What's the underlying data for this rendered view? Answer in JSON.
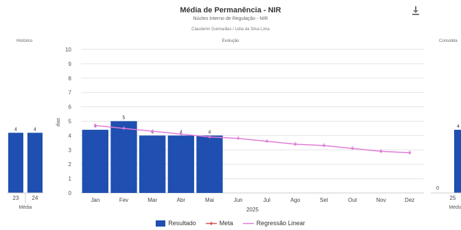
{
  "header": {
    "title": "Média de Permanência - NIR",
    "subtitle": "Núcleo Interno de Regulação - NIR",
    "authors": "Claudemir Guimarães / Lidia da Silva Lima",
    "download_icon": "download-icon"
  },
  "panels": {
    "left_title": "Histórico",
    "center_title": "Evolução",
    "right_title": "Consolida"
  },
  "colors": {
    "bar": "#1f4fb0",
    "meta": "#d9534f",
    "regression": "#e07ad6"
  },
  "chart_data": [
    {
      "type": "bar",
      "panel": "history",
      "categories": [
        "23",
        "24"
      ],
      "values": [
        4,
        4
      ],
      "data_labels": [
        "4",
        "4"
      ],
      "xlabel": "Média"
    },
    {
      "type": "bar",
      "panel": "evolution",
      "categories": [
        "Jan",
        "Fev",
        "Mar",
        "Abr",
        "Mai",
        "Jun",
        "Jul",
        "Ago",
        "Set",
        "Out",
        "Nov",
        "Dez"
      ],
      "series": [
        {
          "name": "Resultado",
          "type": "bar",
          "values": [
            4.4,
            5.0,
            4.0,
            4.0,
            4.0,
            null,
            null,
            null,
            null,
            null,
            null,
            null
          ],
          "labels": [
            "4",
            "5",
            "4",
            "4",
            "4",
            "",
            "",
            "",
            "",
            "",
            "",
            ""
          ]
        },
        {
          "name": "Meta",
          "type": "line",
          "values": [
            null,
            null,
            null,
            null,
            null,
            null,
            null,
            null,
            null,
            null,
            null,
            null
          ]
        },
        {
          "name": "Regressão Linear",
          "type": "line",
          "values": [
            4.7,
            4.5,
            4.3,
            4.1,
            3.9,
            3.8,
            3.6,
            3.4,
            3.3,
            3.1,
            2.9,
            2.8
          ],
          "labels": [
            "5",
            "4",
            "4",
            "4",
            "4",
            "4",
            "4",
            "3",
            "3",
            "3",
            "3",
            "3"
          ]
        }
      ],
      "ylabel": "dias",
      "xlabel": "2025",
      "ylim": [
        0,
        10
      ],
      "yticks": [
        0,
        1,
        2,
        3,
        4,
        5,
        6,
        7,
        8,
        9,
        10
      ],
      "grid": true,
      "legend": "bottom"
    },
    {
      "type": "bar",
      "panel": "consolidated",
      "categories": [
        "25"
      ],
      "values": [
        4.4
      ],
      "data_labels": [
        "4"
      ],
      "extra_label": "0",
      "xlabel": "Média"
    }
  ],
  "legend": {
    "items": [
      {
        "label": "Resultado",
        "kind": "bar"
      },
      {
        "label": "Meta",
        "kind": "meta"
      },
      {
        "label": "Regressão Linear",
        "kind": "regression"
      }
    ]
  }
}
